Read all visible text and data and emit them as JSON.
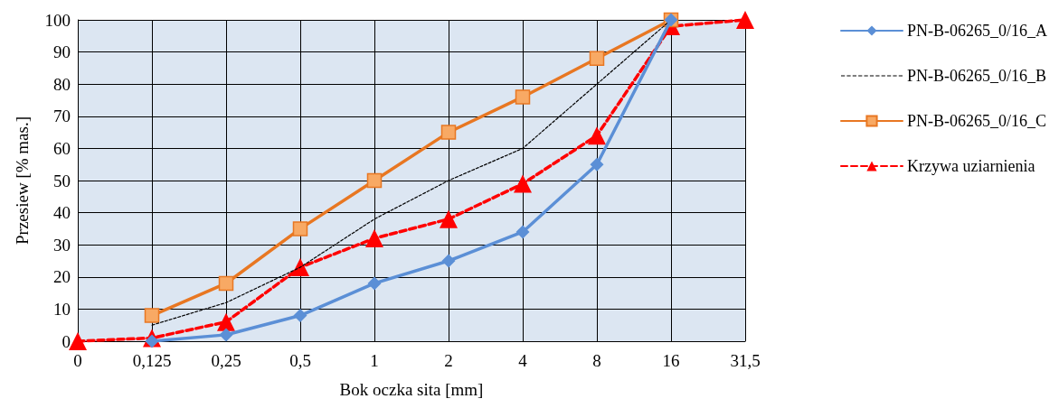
{
  "chart_data": {
    "type": "line",
    "xlabel": "Bok oczka sita [mm]",
    "ylabel": "Przesiew [% mas.]",
    "categories": [
      "0",
      "0,125",
      "0,25",
      "0,5",
      "1",
      "2",
      "4",
      "8",
      "16",
      "31,5"
    ],
    "series": [
      {
        "name": "PN-B-06265_0/16_A",
        "color": "#5b8fd6",
        "marker": "diamond",
        "line_style": "solid",
        "values": [
          null,
          0,
          2,
          8,
          18,
          25,
          34,
          55,
          100,
          null
        ]
      },
      {
        "name": "PN-B-06265_0/16_B",
        "color": "#000000",
        "marker": "none",
        "line_style": "dotted",
        "values": [
          null,
          5,
          12,
          23,
          38,
          50,
          60,
          80,
          100,
          null
        ]
      },
      {
        "name": "PN-B-06265_0/16_C",
        "color": "#e87722",
        "marker": "square",
        "line_style": "solid",
        "values": [
          null,
          8,
          18,
          35,
          50,
          65,
          76,
          88,
          100,
          null
        ]
      },
      {
        "name": "Krzywa uziarnienia",
        "color": "#ff0000",
        "marker": "triangle",
        "line_style": "dashed",
        "values": [
          0,
          1,
          6,
          23,
          32,
          38,
          49,
          64,
          98,
          100
        ]
      }
    ],
    "ylim": [
      0,
      100
    ],
    "yticks": [
      0,
      10,
      20,
      30,
      40,
      50,
      60,
      70,
      80,
      90,
      100
    ],
    "grid": true,
    "legend": "right"
  }
}
